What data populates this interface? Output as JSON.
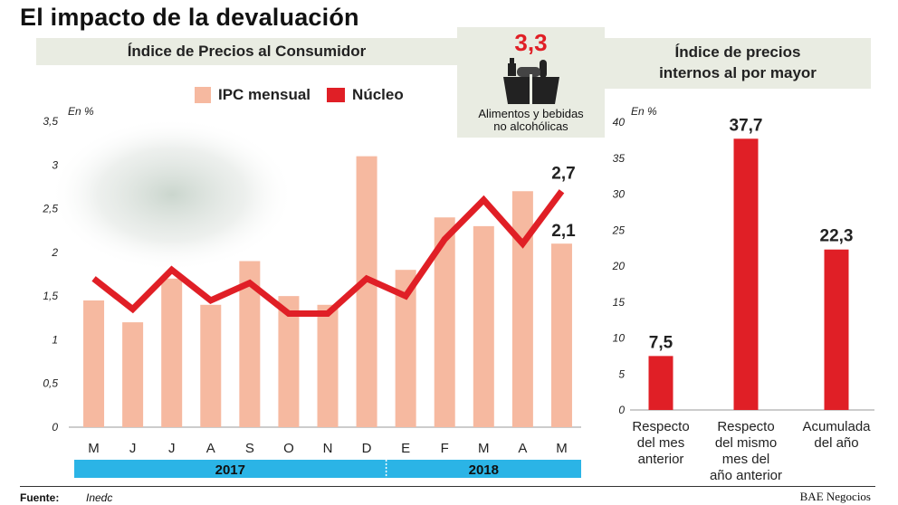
{
  "title": "El impacto de la devaluación",
  "left_panel_title": "Índice de Precios al Consumidor",
  "right_panel_title_line1": "Índice de precios",
  "right_panel_title_line2": "internos al por mayor",
  "callout": {
    "value": "3,3",
    "label_line1": "Alimentos y bebidas",
    "label_line2": "no alcohólicas",
    "icon": "grocery-bag-icon"
  },
  "legend": {
    "bar_label": "IPC mensual",
    "line_label": "Núcleo"
  },
  "colors": {
    "bar": "#f6b9a0",
    "line": "#e01f26",
    "right_bar": "#e01f26",
    "year_band": "#2bb4e6",
    "panel_band": "#e9ece2"
  },
  "footer": {
    "label": "Fuente:",
    "source": "Inedc",
    "credit": "BAE Negocios"
  },
  "chart_data": [
    {
      "type": "bar",
      "title": "Índice de Precios al Consumidor",
      "ylabel": "En %",
      "ylim": [
        0,
        3.5
      ],
      "yticks": [
        0,
        0.5,
        1,
        1.5,
        2,
        2.5,
        3,
        3.5
      ],
      "ytick_labels": [
        "0",
        "0,5",
        "1",
        "1,5",
        "2",
        "2,5",
        "3",
        "3,5"
      ],
      "categories": [
        "M",
        "J",
        "J",
        "A",
        "S",
        "O",
        "N",
        "D",
        "E",
        "F",
        "M",
        "A",
        "M"
      ],
      "year_groups": [
        {
          "label": "2017",
          "count": 8
        },
        {
          "label": "2018",
          "count": 5
        }
      ],
      "series": [
        {
          "name": "IPC mensual",
          "type": "bar",
          "values": [
            1.45,
            1.2,
            1.7,
            1.4,
            1.9,
            1.5,
            1.4,
            3.1,
            1.8,
            2.4,
            2.3,
            2.7,
            2.1
          ]
        },
        {
          "name": "Núcleo",
          "type": "line",
          "values": [
            1.7,
            1.35,
            1.8,
            1.45,
            1.65,
            1.3,
            1.3,
            1.7,
            1.5,
            2.15,
            2.6,
            2.1,
            2.7
          ]
        }
      ],
      "annotations": [
        {
          "text": "2,7",
          "series": "Núcleo",
          "index": 12
        },
        {
          "text": "2,1",
          "series": "IPC mensual",
          "index": 12
        }
      ],
      "legend": "top"
    },
    {
      "type": "bar",
      "title": "Índice de precios internos al por mayor",
      "ylabel": "En %",
      "ylim": [
        0,
        40
      ],
      "yticks": [
        0,
        5,
        10,
        15,
        20,
        25,
        30,
        35,
        40
      ],
      "ytick_labels": [
        "0",
        "5",
        "10",
        "15",
        "20",
        "25",
        "30",
        "35",
        "40"
      ],
      "categories": [
        [
          "Respecto",
          "del mes",
          "anterior"
        ],
        [
          "Respecto",
          "del mismo",
          "mes del",
          "año anterior"
        ],
        [
          "Acumulada",
          "del año"
        ]
      ],
      "values": [
        7.5,
        37.7,
        22.3
      ],
      "value_labels": [
        "7,5",
        "37,7",
        "22,3"
      ]
    }
  ]
}
